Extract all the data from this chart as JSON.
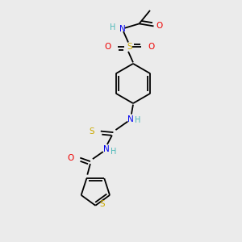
{
  "background_color": "#ebebeb",
  "atom_colors": {
    "C": "#000000",
    "H": "#4ab8b8",
    "N": "#0000ee",
    "O": "#ee0000",
    "S": "#ccaa00"
  },
  "figsize": [
    3.0,
    3.0
  ],
  "dpi": 100
}
